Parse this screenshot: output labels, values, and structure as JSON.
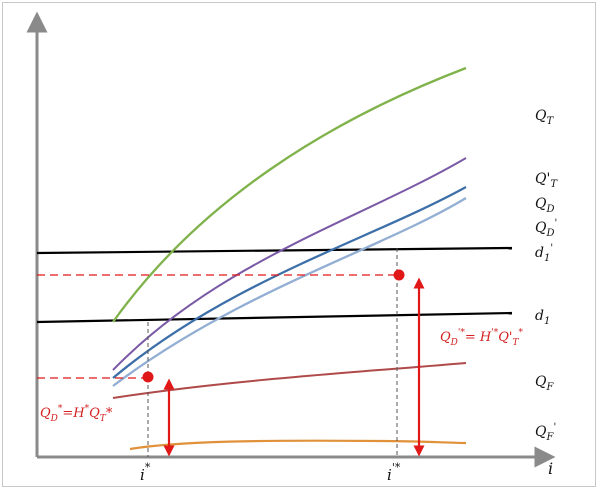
{
  "colors": {
    "axis": "#8a8a8a",
    "QT": "#7fb24a",
    "QT_prime": "#7a5aa6",
    "QD": "#3d6fa8",
    "QD_prime": "#92aed3",
    "QF": "#b04a4a",
    "QF_prime": "#e0913a",
    "d_lines": "#000000",
    "red": "#e01818",
    "guides": "#555555"
  },
  "labels": {
    "QT": {
      "main": "Q",
      "sub": "T",
      "sup": ""
    },
    "QT_prime": {
      "main": "Q'",
      "sub": "T",
      "sup": ""
    },
    "QD": {
      "main": "Q",
      "sub": "D",
      "sup": ""
    },
    "QD_prime": {
      "main": "Q",
      "sub": "D",
      "sup": "'"
    },
    "d1_prime": {
      "main": "d",
      "sub": "1",
      "sup": "'"
    },
    "d1": {
      "main": "d",
      "sub": "1",
      "sup": ""
    },
    "QF": {
      "main": "Q",
      "sub": "F",
      "sup": ""
    },
    "QF_prime": {
      "main": "Q",
      "sub": "F",
      "sup": "'"
    },
    "x_axis": "i",
    "tick_i_star": "i",
    "tick_i_star_sup": "*",
    "tick_i_prime_star": "i",
    "tick_i_prime_star_sup": "'*",
    "eq_left": {
      "p1": "Q",
      "p1sub": "D",
      "p1sup": "*",
      "p2": "=H",
      "p2sup": "*",
      "p3": "Q",
      "p3sub": "T",
      "p3sup": "*"
    },
    "eq_right": {
      "p1": "Q",
      "p1sub": "D",
      "p1sup": "'*",
      "p2": "= H",
      "p2sup": "'*",
      "p3": "Q'",
      "p3sub": "T",
      "p3sup": "*"
    }
  }
}
